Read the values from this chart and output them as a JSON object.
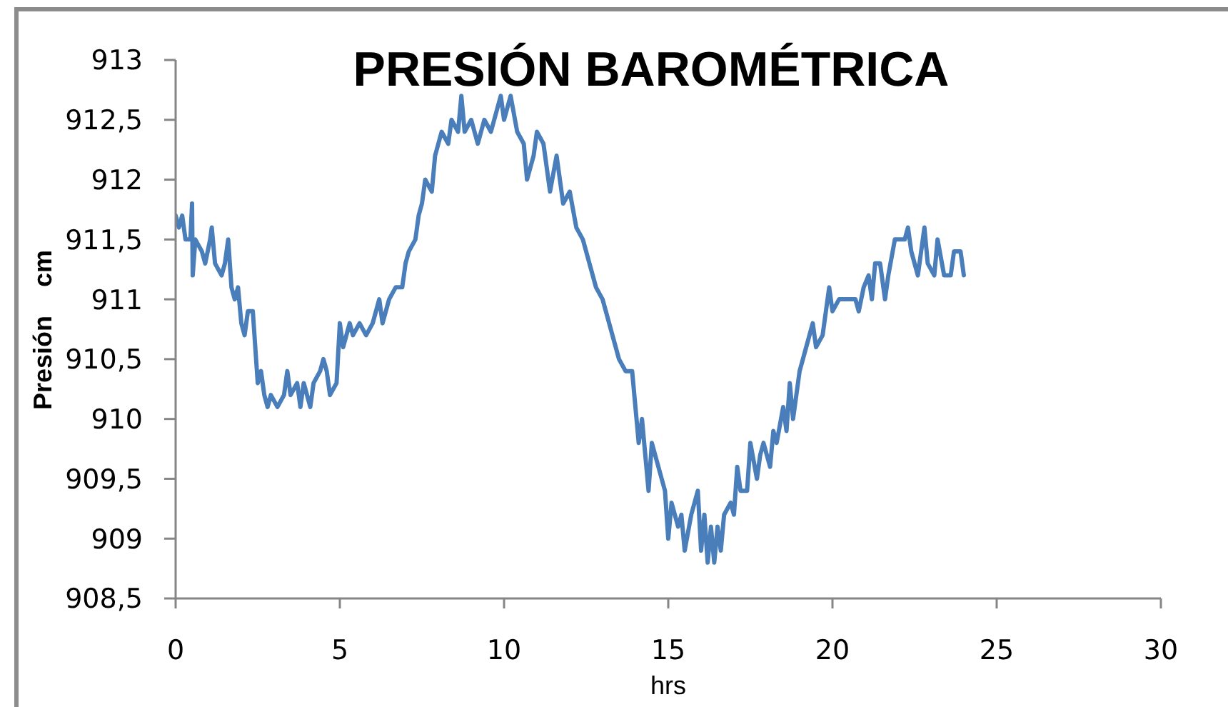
{
  "chart_data": {
    "type": "line",
    "title": "PRESIÓN BAROMÉTRICA",
    "xlabel": "hrs",
    "ylabel": "Presión    cm",
    "x": [
      0,
      0.1,
      0.2,
      0.3,
      0.45,
      0.5,
      0.52,
      0.6,
      0.8,
      0.9,
      1.05,
      1.1,
      1.2,
      1.4,
      1.5,
      1.6,
      1.7,
      1.8,
      1.9,
      2,
      2.1,
      2.2,
      2.35,
      2.45,
      2.5,
      2.6,
      2.7,
      2.8,
      2.9,
      3.1,
      3.3,
      3.4,
      3.5,
      3.7,
      3.8,
      3.9,
      4,
      4.1,
      4.2,
      4.4,
      4.5,
      4.6,
      4.7,
      4.9,
      5,
      5.1,
      5.3,
      5.4,
      5.6,
      5.8,
      6,
      6.2,
      6.3,
      6.5,
      6.7,
      6.9,
      7,
      7.1,
      7.3,
      7.4,
      7.5,
      7.6,
      7.8,
      7.9,
      8,
      8.1,
      8.3,
      8.4,
      8.6,
      8.7,
      8.8,
      9,
      9.2,
      9.4,
      9.6,
      9.8,
      9.9,
      10,
      10.2,
      10.4,
      10.6,
      10.7,
      10.9,
      11,
      11.2,
      11.4,
      11.6,
      11.8,
      12,
      12.2,
      12.4,
      12.6,
      12.8,
      13,
      13.2,
      13.4,
      13.5,
      13.7,
      13.9,
      14,
      14.1,
      14.2,
      14.3,
      14.4,
      14.5,
      14.6,
      14.8,
      14.9,
      15,
      15.1,
      15.3,
      15.4,
      15.5,
      15.7,
      15.8,
      15.9,
      16,
      16.1,
      16.2,
      16.3,
      16.4,
      16.5,
      16.6,
      16.7,
      16.9,
      17,
      17.1,
      17.2,
      17.4,
      17.5,
      17.7,
      17.8,
      17.9,
      18.1,
      18.2,
      18.3,
      18.5,
      18.6,
      18.7,
      18.8,
      19,
      19.1,
      19.3,
      19.4,
      19.5,
      19.7,
      19.9,
      20,
      20.2,
      20.7,
      20.8,
      20.95,
      21.1,
      21.2,
      21.3,
      21.45,
      21.6,
      21.7,
      21.9,
      22.2,
      22.3,
      22.4,
      22.6,
      22.8,
      22.9,
      23.1,
      23.2,
      23.4,
      23.6,
      23.7,
      23.9,
      24
    ],
    "values": [
      911.7,
      911.6,
      911.7,
      911.5,
      911.5,
      911.8,
      911.2,
      911.5,
      911.4,
      911.3,
      911.5,
      911.6,
      911.3,
      911.2,
      911.3,
      911.5,
      911.1,
      911,
      911.1,
      910.8,
      910.7,
      910.9,
      910.9,
      910.5,
      910.3,
      910.4,
      910.2,
      910.1,
      910.2,
      910.1,
      910.2,
      910.4,
      910.2,
      910.3,
      910.1,
      910.3,
      910.2,
      910.1,
      910.3,
      910.4,
      910.5,
      910.4,
      910.2,
      910.3,
      910.8,
      910.6,
      910.8,
      910.7,
      910.8,
      910.7,
      910.8,
      911,
      910.8,
      911,
      911.1,
      911.1,
      911.3,
      911.4,
      911.5,
      911.7,
      911.8,
      912,
      911.9,
      912.2,
      912.3,
      912.4,
      912.3,
      912.5,
      912.4,
      912.7,
      912.4,
      912.5,
      912.3,
      912.5,
      912.4,
      912.6,
      912.7,
      912.5,
      912.7,
      912.4,
      912.3,
      912,
      912.2,
      912.4,
      912.3,
      911.9,
      912.2,
      911.8,
      911.9,
      911.6,
      911.5,
      911.3,
      911.1,
      911,
      910.8,
      910.6,
      910.5,
      910.4,
      910.4,
      910.1,
      909.8,
      910,
      909.7,
      909.4,
      909.8,
      909.7,
      909.5,
      909.4,
      909,
      909.3,
      909.1,
      909.2,
      908.9,
      909.2,
      909.3,
      909.4,
      908.9,
      909.2,
      908.8,
      909.1,
      908.8,
      909.1,
      908.9,
      909.2,
      909.3,
      909.2,
      909.6,
      909.4,
      909.4,
      909.8,
      909.5,
      909.7,
      909.8,
      909.6,
      909.9,
      909.8,
      910.1,
      909.9,
      910.3,
      910,
      910.4,
      910.5,
      910.7,
      910.8,
      910.6,
      910.7,
      911.1,
      910.9,
      911,
      911,
      910.9,
      911.1,
      911.2,
      911,
      911.3,
      911.3,
      911,
      911.2,
      911.5,
      911.5,
      911.6,
      911.4,
      911.2,
      911.6,
      911.3,
      911.2,
      911.5,
      911.2,
      911.2,
      911.4,
      911.4,
      911.2
    ],
    "color": "#4a7ebb",
    "xlim": [
      0,
      30
    ],
    "xticks": [
      0,
      5,
      10,
      15,
      20,
      25,
      30
    ],
    "ylim": [
      908.5,
      913
    ],
    "yticks": [
      {
        "value": 908.5,
        "label": "908,5"
      },
      909,
      {
        "value": 909.5,
        "label": "909,5"
      },
      910,
      {
        "value": 910.5,
        "label": "910,5"
      },
      911,
      {
        "value": 911.5,
        "label": "911,5"
      },
      912,
      {
        "value": 912.5,
        "label": "912,5"
      },
      913
    ]
  }
}
